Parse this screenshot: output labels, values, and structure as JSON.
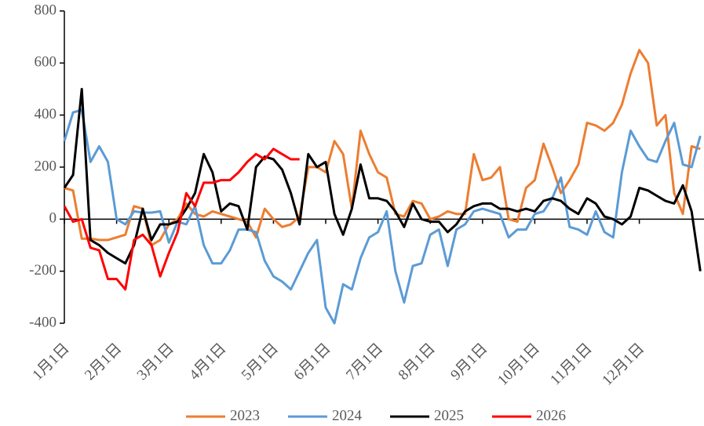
{
  "chart_data": {
    "type": "line",
    "categories": [
      "1月1日",
      null,
      null,
      null,
      null,
      null,
      "2月1日",
      null,
      null,
      null,
      null,
      null,
      "3月1日",
      null,
      null,
      null,
      null,
      null,
      "4月1日",
      null,
      null,
      null,
      null,
      null,
      "5月1日",
      null,
      null,
      null,
      null,
      null,
      "6月1日",
      null,
      null,
      null,
      null,
      null,
      "7月1日",
      null,
      null,
      null,
      null,
      null,
      "8月1日",
      null,
      null,
      null,
      null,
      null,
      "9月1日",
      null,
      null,
      null,
      null,
      null,
      "10月1日",
      null,
      null,
      null,
      null,
      null,
      "11月1日",
      null,
      null,
      null,
      null,
      null,
      "12月1日",
      null,
      null,
      null,
      null,
      null,
      null,
      null
    ],
    "series": [
      {
        "name": "2023",
        "color": "#ed7d31",
        "values": [
          120,
          110,
          -75,
          -75,
          -80,
          -80,
          -70,
          -60,
          50,
          40,
          -100,
          -80,
          -20,
          0,
          60,
          20,
          10,
          30,
          20,
          10,
          0,
          -10,
          -70,
          40,
          0,
          -30,
          -20,
          10,
          200,
          200,
          180,
          300,
          250,
          40,
          340,
          250,
          180,
          160,
          20,
          10,
          70,
          60,
          0,
          10,
          30,
          20,
          20,
          250,
          150,
          160,
          200,
          0,
          -10,
          120,
          150,
          290,
          200,
          100,
          150,
          210,
          370,
          360,
          340,
          370,
          440,
          560,
          650,
          600,
          360,
          400,
          100,
          20,
          280,
          270
        ]
      },
      {
        "name": "2024",
        "color": "#5b9bd5",
        "values": [
          300,
          410,
          420,
          220,
          280,
          220,
          0,
          -20,
          30,
          25,
          25,
          30,
          -90,
          -10,
          -20,
          50,
          -100,
          -170,
          -170,
          -120,
          -40,
          -40,
          -50,
          -160,
          -220,
          -240,
          -270,
          -200,
          -130,
          -80,
          -340,
          -400,
          -250,
          -270,
          -150,
          -70,
          -50,
          30,
          -200,
          -320,
          -180,
          -170,
          -60,
          -40,
          -180,
          -40,
          -20,
          30,
          40,
          30,
          20,
          -70,
          -40,
          -40,
          20,
          30,
          80,
          160,
          -30,
          -40,
          -60,
          30,
          -50,
          -70,
          180,
          340,
          280,
          230,
          220,
          300,
          370,
          210,
          200,
          320
        ]
      },
      {
        "name": "2025",
        "color": "#000000",
        "values": [
          120,
          170,
          500,
          -80,
          -100,
          -130,
          -150,
          -170,
          -100,
          40,
          -80,
          -20,
          -20,
          -10,
          40,
          100,
          250,
          180,
          30,
          60,
          50,
          -40,
          200,
          240,
          230,
          190,
          100,
          -20,
          250,
          200,
          220,
          20,
          -60,
          40,
          210,
          80,
          80,
          70,
          30,
          -30,
          60,
          0,
          -10,
          -10,
          -50,
          -20,
          30,
          50,
          60,
          60,
          40,
          40,
          30,
          40,
          30,
          70,
          80,
          70,
          40,
          20,
          80,
          60,
          10,
          0,
          -20,
          10,
          120,
          110,
          90,
          70,
          60,
          130,
          30,
          -200
        ]
      },
      {
        "name": "2026",
        "color": "#ff0000",
        "values": [
          50,
          -10,
          0,
          -110,
          -120,
          -230,
          -230,
          -270,
          -80,
          -60,
          -100,
          -220,
          -130,
          -50,
          100,
          50,
          140,
          140,
          150,
          150,
          180,
          220,
          250,
          230,
          270,
          250,
          230,
          230,
          null,
          null,
          null,
          null,
          null,
          null,
          null,
          null,
          null,
          null,
          null,
          null,
          null,
          null,
          null,
          null,
          null,
          null,
          null,
          null,
          null,
          null,
          null,
          null,
          null,
          null,
          null,
          null,
          null,
          null,
          null,
          null,
          null,
          null,
          null,
          null,
          null,
          null,
          null,
          null,
          null,
          null,
          null,
          null,
          null,
          null
        ]
      }
    ],
    "ylim": [
      -400,
      800
    ],
    "yticks": [
      -400,
      -200,
      0,
      200,
      400,
      600,
      800
    ]
  }
}
